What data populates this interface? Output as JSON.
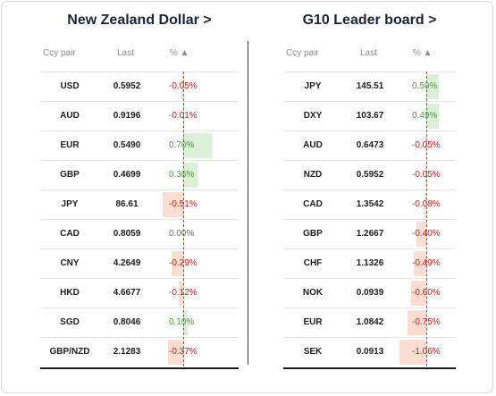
{
  "left": {
    "title": "New Zealand Dollar >",
    "headers": {
      "pair": "Ccy pair",
      "last": "Last",
      "pct": "% ▲"
    },
    "rows": [
      {
        "pair": "USD",
        "last": "0.5952",
        "pct": "-0.05%",
        "value": -0.05
      },
      {
        "pair": "AUD",
        "last": "0.9196",
        "pct": "-0.01%",
        "value": -0.01
      },
      {
        "pair": "EUR",
        "last": "0.5490",
        "pct": "0.70%",
        "value": 0.7
      },
      {
        "pair": "GBP",
        "last": "0.4699",
        "pct": "0.36%",
        "value": 0.36
      },
      {
        "pair": "JPY",
        "last": "86.61",
        "pct": "-0.51%",
        "value": -0.51
      },
      {
        "pair": "CAD",
        "last": "0.8059",
        "pct": "0.00%",
        "value": 0.0
      },
      {
        "pair": "CNY",
        "last": "4.2649",
        "pct": "-0.29%",
        "value": -0.29
      },
      {
        "pair": "HKD",
        "last": "4.6677",
        "pct": "-0.12%",
        "value": -0.12
      },
      {
        "pair": "SGD",
        "last": "0.8046",
        "pct": "0.10%",
        "value": 0.1
      },
      {
        "pair": "GBP/NZD",
        "last": "2.1283",
        "pct": "-0.37%",
        "value": -0.37
      }
    ]
  },
  "right": {
    "title": "G10 Leader board >",
    "headers": {
      "pair": "Ccy pair",
      "last": "Last",
      "pct": "% ▲"
    },
    "rows": [
      {
        "pair": "JPY",
        "last": "145.51",
        "pct": "0.50%",
        "value": 0.5
      },
      {
        "pair": "DXY",
        "last": "103.67",
        "pct": "0.49%",
        "value": 0.49
      },
      {
        "pair": "AUD",
        "last": "0.6473",
        "pct": "-0.05%",
        "value": -0.05
      },
      {
        "pair": "NZD",
        "last": "0.5952",
        "pct": "-0.05%",
        "value": -0.05
      },
      {
        "pair": "CAD",
        "last": "1.3542",
        "pct": "-0.08%",
        "value": -0.08
      },
      {
        "pair": "GBP",
        "last": "1.2667",
        "pct": "-0.40%",
        "value": -0.4
      },
      {
        "pair": "CHF",
        "last": "1.1326",
        "pct": "-0.49%",
        "value": -0.49
      },
      {
        "pair": "NOK",
        "last": "0.0939",
        "pct": "-0.60%",
        "value": -0.6
      },
      {
        "pair": "EUR",
        "last": "1.0842",
        "pct": "-0.75%",
        "value": -0.75
      },
      {
        "pair": "SEK",
        "last": "0.0913",
        "pct": "-1.06%",
        "value": -1.06
      }
    ]
  },
  "colors": {
    "positive_bar": "#dcefd7",
    "negative_bar": "#fbddd1",
    "positive_text": "#4a9b3b",
    "negative_text": "#d11a1a"
  }
}
